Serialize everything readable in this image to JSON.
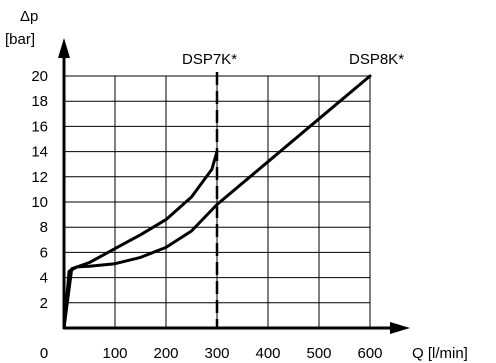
{
  "chart_data": {
    "type": "line",
    "title": "",
    "ylabel_symbol": "Δp",
    "ylabel_unit": "[bar]",
    "xlabel": "Q [l/min]",
    "xlim": [
      0,
      600
    ],
    "ylim": [
      0,
      20
    ],
    "x_ticks": [
      0,
      100,
      200,
      300,
      400,
      500,
      600
    ],
    "y_ticks": [
      2,
      4,
      6,
      8,
      10,
      12,
      14,
      16,
      18,
      20
    ],
    "grid": true,
    "series": [
      {
        "name": "DSP7K*",
        "x": [
          0,
          15,
          50,
          100,
          150,
          200,
          250,
          290,
          300
        ],
        "y": [
          0,
          4.7,
          5.2,
          6.3,
          7.4,
          8.6,
          10.4,
          12.6,
          14
        ]
      },
      {
        "name": "DSP8K*",
        "x": [
          0,
          10,
          25,
          50,
          100,
          150,
          200,
          250,
          300,
          400,
          500,
          600
        ],
        "y": [
          0,
          4.5,
          4.85,
          4.9,
          5.1,
          5.6,
          6.4,
          7.7,
          9.8,
          13.2,
          16.6,
          20
        ]
      }
    ],
    "limit_line": {
      "x": 300
    }
  }
}
